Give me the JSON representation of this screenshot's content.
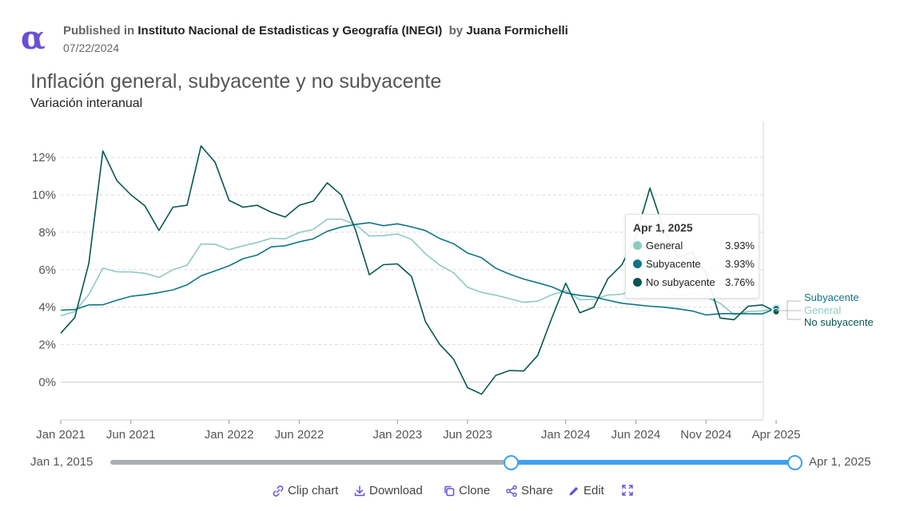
{
  "header": {
    "published_label": "Published in",
    "publisher": "Instituto Nacional de Estadisticas y Geografía (INEGI)",
    "by_label": "by",
    "author": "Juana Formichelli",
    "date": "07/22/2024",
    "logo_glyph": "α"
  },
  "tooltip": {
    "title": "Apr 1, 2025",
    "rows": [
      {
        "name": "General",
        "value": "3.93%",
        "color": "#8ec9c4"
      },
      {
        "name": "Subyacente",
        "value": "3.93%",
        "color": "#0f7584"
      },
      {
        "name": "No subyacente",
        "value": "3.76%",
        "color": "#06574f"
      }
    ]
  },
  "slider": {
    "start": "Jan 1, 2015",
    "end": "Apr 1, 2025",
    "selected_fraction": [
      0.6,
      1.0
    ]
  },
  "toolbar": {
    "clip": "Clip chart",
    "download": "Download",
    "clone": "Clone",
    "share": "Share",
    "edit": "Edit"
  },
  "icons": [
    "link-icon",
    "download-icon",
    "clone-icon",
    "share-icon",
    "pencil-icon",
    "fullscreen-icon"
  ],
  "chart_data": {
    "type": "line",
    "title": "Inflación general, subyacente y no subyacente",
    "subtitle": "Variación interanual",
    "x_ticks": [
      "Jan 2021",
      "Jun 2021",
      "Jan 2022",
      "Jun 2022",
      "Jan 2023",
      "Jun 2023",
      "Jan 2024",
      "Jun 2024",
      "Nov 2024",
      "Apr 2025"
    ],
    "x_range": [
      "2021-01",
      "2025-04"
    ],
    "y_ticks": [
      "0%",
      "2%",
      "4%",
      "6%",
      "8%",
      "10%",
      "12%"
    ],
    "ylim": [
      -2,
      13.5
    ],
    "grid": "horizontal dashed",
    "legend_placement": "right end labels",
    "x": [
      "2021-01",
      "2021-02",
      "2021-03",
      "2021-04",
      "2021-05",
      "2021-06",
      "2021-07",
      "2021-08",
      "2021-09",
      "2021-10",
      "2021-11",
      "2021-12",
      "2022-01",
      "2022-02",
      "2022-03",
      "2022-04",
      "2022-05",
      "2022-06",
      "2022-07",
      "2022-08",
      "2022-09",
      "2022-10",
      "2022-11",
      "2022-12",
      "2023-01",
      "2023-02",
      "2023-03",
      "2023-04",
      "2023-05",
      "2023-06",
      "2023-07",
      "2023-08",
      "2023-09",
      "2023-10",
      "2023-11",
      "2023-12",
      "2024-01",
      "2024-02",
      "2024-03",
      "2024-04",
      "2024-05",
      "2024-06",
      "2024-07",
      "2024-08",
      "2024-09",
      "2024-10",
      "2024-11",
      "2024-12",
      "2025-01",
      "2025-02",
      "2025-03",
      "2025-04"
    ],
    "series": [
      {
        "name": "General",
        "color": "#8ec9c4",
        "values": [
          3.54,
          3.76,
          4.67,
          6.08,
          5.89,
          5.88,
          5.81,
          5.59,
          6.0,
          6.24,
          7.37,
          7.36,
          7.07,
          7.28,
          7.45,
          7.68,
          7.65,
          7.99,
          8.15,
          8.7,
          8.7,
          8.41,
          7.8,
          7.82,
          7.91,
          7.62,
          6.85,
          6.25,
          5.84,
          5.06,
          4.79,
          4.64,
          4.45,
          4.26,
          4.32,
          4.66,
          4.88,
          4.4,
          4.42,
          4.65,
          4.69,
          4.98,
          5.57,
          4.99,
          4.58,
          4.76,
          4.55,
          4.21,
          3.59,
          3.77,
          3.8,
          3.93
        ]
      },
      {
        "name": "Subyacente",
        "color": "#0f7584",
        "values": [
          3.84,
          3.87,
          4.12,
          4.13,
          4.37,
          4.58,
          4.66,
          4.78,
          4.92,
          5.19,
          5.67,
          5.94,
          6.21,
          6.59,
          6.78,
          7.22,
          7.28,
          7.49,
          7.65,
          8.05,
          8.28,
          8.42,
          8.51,
          8.35,
          8.45,
          8.29,
          8.09,
          7.67,
          7.39,
          6.89,
          6.64,
          6.08,
          5.76,
          5.5,
          5.3,
          5.09,
          4.76,
          4.63,
          4.55,
          4.37,
          4.21,
          4.13,
          4.05,
          4.0,
          3.91,
          3.8,
          3.58,
          3.65,
          3.66,
          3.65,
          3.64,
          3.93
        ]
      },
      {
        "name": "No subyacente",
        "color": "#06574f",
        "values": [
          2.61,
          3.44,
          6.33,
          12.34,
          10.76,
          10.0,
          9.41,
          8.1,
          9.34,
          9.44,
          12.61,
          11.74,
          9.7,
          9.34,
          9.44,
          9.07,
          8.81,
          9.44,
          9.66,
          10.64,
          9.99,
          8.15,
          5.73,
          6.27,
          6.31,
          5.64,
          3.23,
          2.03,
          1.23,
          -0.3,
          -0.65,
          0.35,
          0.62,
          0.59,
          1.42,
          3.41,
          5.28,
          3.7,
          4.0,
          5.52,
          6.26,
          7.8,
          10.36,
          8.14,
          6.65,
          6.93,
          5.8,
          3.42,
          3.33,
          4.05,
          4.12,
          3.76
        ]
      }
    ],
    "end_labels": [
      "Subyacente",
      "General",
      "No subyacente"
    ]
  }
}
